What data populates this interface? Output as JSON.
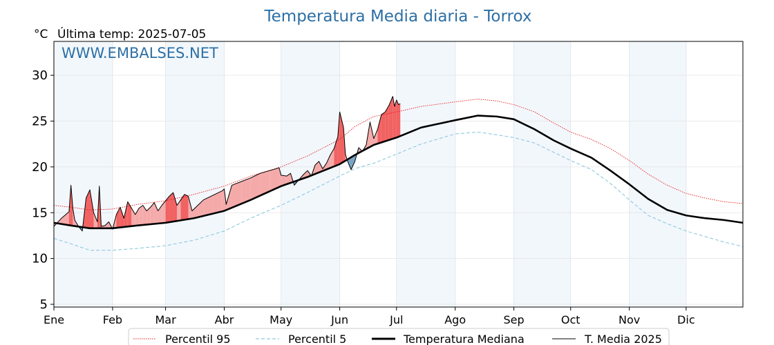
{
  "chart_data": {
    "type": "line",
    "title": "Temperatura Media diaria - Torrox",
    "unit_label": "°C",
    "last_temp": "Última temp: 2025-07-05",
    "watermark": "WWW.EMBALSES.NET",
    "ylim": [
      4.7,
      33.7
    ],
    "yticks": [
      5,
      10,
      15,
      20,
      25,
      30
    ],
    "xlim": [
      1,
      365
    ],
    "x_unit": "day of year",
    "month_labels": [
      "Ene",
      "Feb",
      "Mar",
      "Abr",
      "May",
      "Jun",
      "Jul",
      "Ago",
      "Sep",
      "Oct",
      "Nov",
      "Dic"
    ],
    "month_start_days": [
      1,
      32,
      60,
      91,
      121,
      152,
      182,
      213,
      244,
      274,
      305,
      335
    ],
    "shaded_months": [
      "Ene",
      "Mar",
      "May",
      "Jul",
      "Sep",
      "Nov"
    ],
    "grid": true,
    "legend_position": "bottom",
    "colors": {
      "p95": "#e41a1c",
      "p5": "#8ec9dc",
      "median": "#000000",
      "current": "#000000",
      "above_fill": "#f4a5a5",
      "above_strong": "#f05a5a",
      "below_fill": "#6fa0c4",
      "month_band": "#f2f7fc",
      "title": "#2c6fa5"
    },
    "series": [
      {
        "name": "Percentil 95",
        "style": "dotted-red",
        "x": [
          1,
          10,
          20,
          32,
          45,
          60,
          75,
          91,
          105,
          121,
          135,
          152,
          160,
          170,
          182,
          195,
          213,
          225,
          235,
          244,
          255,
          265,
          274,
          285,
          295,
          305,
          315,
          325,
          335,
          345,
          355,
          365
        ],
        "y": [
          15.8,
          15.6,
          15.3,
          15.4,
          15.9,
          16.3,
          17.0,
          17.9,
          19.0,
          20.0,
          21.2,
          23.0,
          24.4,
          25.5,
          26.0,
          26.6,
          27.1,
          27.4,
          27.2,
          26.8,
          26.0,
          24.8,
          23.8,
          23.0,
          22.0,
          20.7,
          19.2,
          18.0,
          17.1,
          16.6,
          16.2,
          16.0
        ]
      },
      {
        "name": "Percentil 5",
        "style": "dashed-lightblue",
        "x": [
          1,
          10,
          20,
          32,
          45,
          60,
          75,
          91,
          105,
          121,
          135,
          152,
          160,
          170,
          182,
          195,
          213,
          225,
          235,
          244,
          255,
          265,
          274,
          285,
          295,
          305,
          315,
          325,
          335,
          345,
          355,
          365
        ],
        "y": [
          12.2,
          11.6,
          10.9,
          10.9,
          11.1,
          11.4,
          12.0,
          13.0,
          14.4,
          15.8,
          17.2,
          19.0,
          19.8,
          20.4,
          21.4,
          22.5,
          23.6,
          23.8,
          23.5,
          23.2,
          22.6,
          21.6,
          20.7,
          19.7,
          18.2,
          16.4,
          14.7,
          13.8,
          13.0,
          12.4,
          11.8,
          11.3
        ]
      },
      {
        "name": "Temperatura Mediana",
        "style": "thick-black",
        "x": [
          1,
          10,
          20,
          32,
          45,
          60,
          75,
          91,
          105,
          121,
          135,
          152,
          160,
          170,
          182,
          195,
          213,
          225,
          235,
          244,
          255,
          265,
          274,
          285,
          295,
          305,
          315,
          325,
          335,
          345,
          355,
          365
        ],
        "y": [
          13.9,
          13.6,
          13.3,
          13.3,
          13.6,
          13.9,
          14.4,
          15.2,
          16.4,
          17.9,
          18.9,
          20.3,
          21.3,
          22.4,
          23.2,
          24.3,
          25.1,
          25.6,
          25.5,
          25.2,
          24.1,
          22.9,
          22.0,
          21.0,
          19.6,
          18.1,
          16.5,
          15.3,
          14.7,
          14.4,
          14.2,
          13.9
        ]
      },
      {
        "name": "T. Media 2025",
        "style": "thin-black",
        "x": [
          1,
          5,
          9,
          10,
          11,
          12,
          14,
          16,
          18,
          20,
          22,
          24,
          25,
          26,
          28,
          30,
          32,
          34,
          36,
          38,
          40,
          42,
          44,
          46,
          48,
          50,
          52,
          54,
          56,
          58,
          60,
          62,
          64,
          66,
          68,
          70,
          72,
          74,
          77,
          80,
          85,
          90,
          91,
          92,
          95,
          100,
          105,
          110,
          115,
          120,
          121,
          124,
          126,
          128,
          130,
          133,
          135,
          137,
          139,
          141,
          143,
          145,
          147,
          149,
          151,
          152,
          154,
          155,
          156,
          158,
          160,
          162,
          164,
          166,
          168,
          170,
          172,
          174,
          176,
          178,
          180,
          181,
          182,
          183,
          184
        ],
        "y": [
          13.5,
          14.4,
          15.1,
          18.0,
          15.5,
          14.2,
          13.5,
          13.0,
          16.6,
          17.5,
          15.0,
          14.0,
          17.9,
          13.5,
          13.6,
          14.0,
          13.2,
          14.8,
          15.6,
          14.4,
          16.2,
          15.5,
          14.8,
          15.5,
          15.8,
          15.2,
          15.6,
          16.1,
          15.2,
          15.8,
          16.3,
          16.8,
          17.2,
          15.8,
          16.4,
          17.0,
          16.8,
          15.2,
          15.8,
          16.4,
          16.9,
          17.4,
          17.6,
          15.9,
          18.0,
          18.4,
          18.8,
          19.3,
          19.6,
          19.9,
          19.1,
          19.0,
          19.3,
          18.0,
          18.5,
          19.2,
          19.6,
          19.0,
          20.2,
          20.6,
          19.8,
          20.4,
          21.3,
          22.0,
          23.3,
          26.0,
          24.3,
          21.4,
          20.7,
          19.7,
          20.6,
          22.1,
          21.7,
          22.4,
          24.9,
          23.1,
          24.1,
          25.7,
          26.0,
          26.7,
          27.7,
          26.6,
          27.3,
          26.8,
          26.9
        ]
      }
    ]
  }
}
